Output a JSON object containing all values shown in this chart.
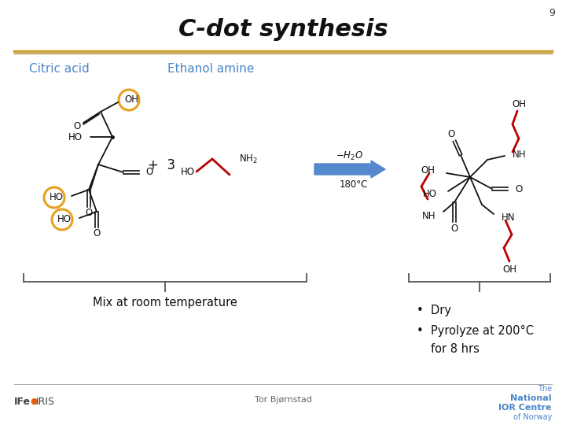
{
  "title": "C-dot synthesis",
  "slide_number": "9",
  "bg_color": "#ffffff",
  "title_color": "#111111",
  "title_fontsize": 22,
  "sep_color1": "#c8a030",
  "sep_color2": "#9a7820",
  "blue_label": "#4a86c8",
  "label_fontsize": 11,
  "citric_acid_label": "Citric acid",
  "ethanol_amine_label": "Ethanol amine",
  "orange_color": "#e8a020",
  "red_color": "#bb0000",
  "arrow_color": "#5588cc",
  "black": "#111111",
  "gray": "#888888",
  "mix_label": "Mix at room temperature",
  "bullet1": "Dry",
  "bullet2": "Pyrolyze at 200°C",
  "bullet3": "for 8 hrs",
  "footer_text": "Tor Bjørnstad",
  "footer_right1": "The",
  "footer_right2": "National",
  "footer_right3": "IOR Centre",
  "footer_right4": "of Norway",
  "footer_left": "IFe  ● IRIS"
}
